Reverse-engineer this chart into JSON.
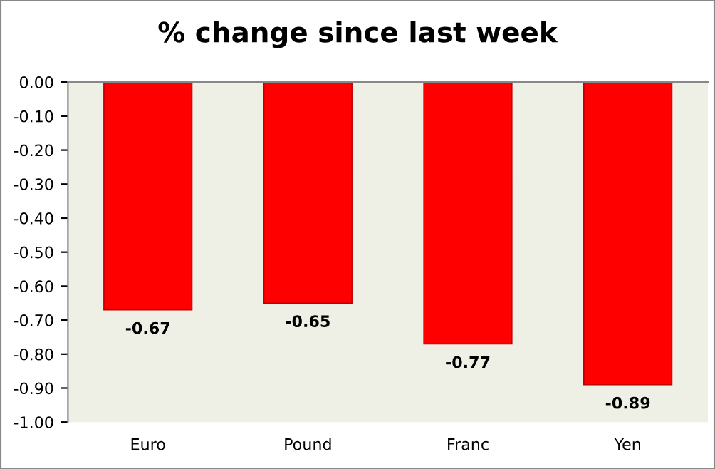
{
  "chart_data": {
    "type": "bar",
    "title": "% change since last week",
    "categories": [
      "Euro",
      "Pound",
      "Franc",
      "Yen"
    ],
    "values": [
      -0.67,
      -0.65,
      -0.77,
      -0.89
    ],
    "color": "#ff0000",
    "ylim": [
      -1.0,
      0.0
    ],
    "yticks": [
      {
        "value": 0.0,
        "label": "0.00"
      },
      {
        "value": -0.1,
        "label": "-0.10"
      },
      {
        "value": -0.2,
        "label": "-0.20"
      },
      {
        "value": -0.3,
        "label": "-0.30"
      },
      {
        "value": -0.4,
        "label": "-0.40"
      },
      {
        "value": -0.5,
        "label": "-0.50"
      },
      {
        "value": -0.6,
        "label": "-0.60"
      },
      {
        "value": -0.7,
        "label": "-0.70"
      },
      {
        "value": -0.8,
        "label": "-0.80"
      },
      {
        "value": -0.9,
        "label": "-0.90"
      },
      {
        "value": -1.0,
        "label": "-1.00"
      }
    ],
    "value_labels": [
      "-0.67",
      "-0.65",
      "-0.77",
      "-0.89"
    ],
    "grid": false
  }
}
